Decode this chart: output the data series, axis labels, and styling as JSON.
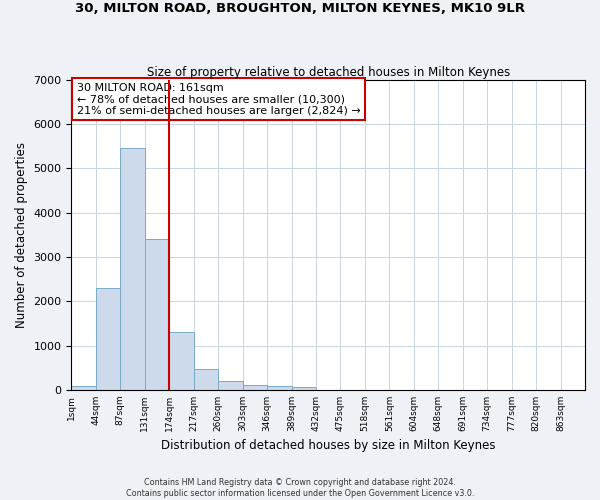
{
  "title1": "30, MILTON ROAD, BROUGHTON, MILTON KEYNES, MK10 9LR",
  "title2": "Size of property relative to detached houses in Milton Keynes",
  "xlabel": "Distribution of detached houses by size in Milton Keynes",
  "ylabel": "Number of detached properties",
  "bar_labels": [
    "1sqm",
    "44sqm",
    "87sqm",
    "131sqm",
    "174sqm",
    "217sqm",
    "260sqm",
    "303sqm",
    "346sqm",
    "389sqm",
    "432sqm",
    "475sqm",
    "518sqm",
    "561sqm",
    "604sqm",
    "648sqm",
    "691sqm",
    "734sqm",
    "777sqm",
    "820sqm",
    "863sqm"
  ],
  "bar_values": [
    80,
    2300,
    5450,
    3400,
    1300,
    480,
    200,
    120,
    90,
    60,
    0,
    0,
    0,
    0,
    0,
    0,
    0,
    0,
    0,
    0,
    0
  ],
  "bar_color": "#ccdaeb",
  "bar_edge_color": "#7aaac8",
  "bin_width": 43,
  "red_line_bin": 4,
  "red_line_color": "#cc0000",
  "ylim": [
    0,
    7000
  ],
  "annotation_box_text": "30 MILTON ROAD: 161sqm\n← 78% of detached houses are smaller (10,300)\n21% of semi-detached houses are larger (2,824) →",
  "annotation_box_color": "#ffffff",
  "annotation_box_edge_color": "#cc0000",
  "footer_text": "Contains HM Land Registry data © Crown copyright and database right 2024.\nContains public sector information licensed under the Open Government Licence v3.0.",
  "background_color": "#eef2f7",
  "plot_background": "#ffffff",
  "grid_color": "#c8d4e0"
}
